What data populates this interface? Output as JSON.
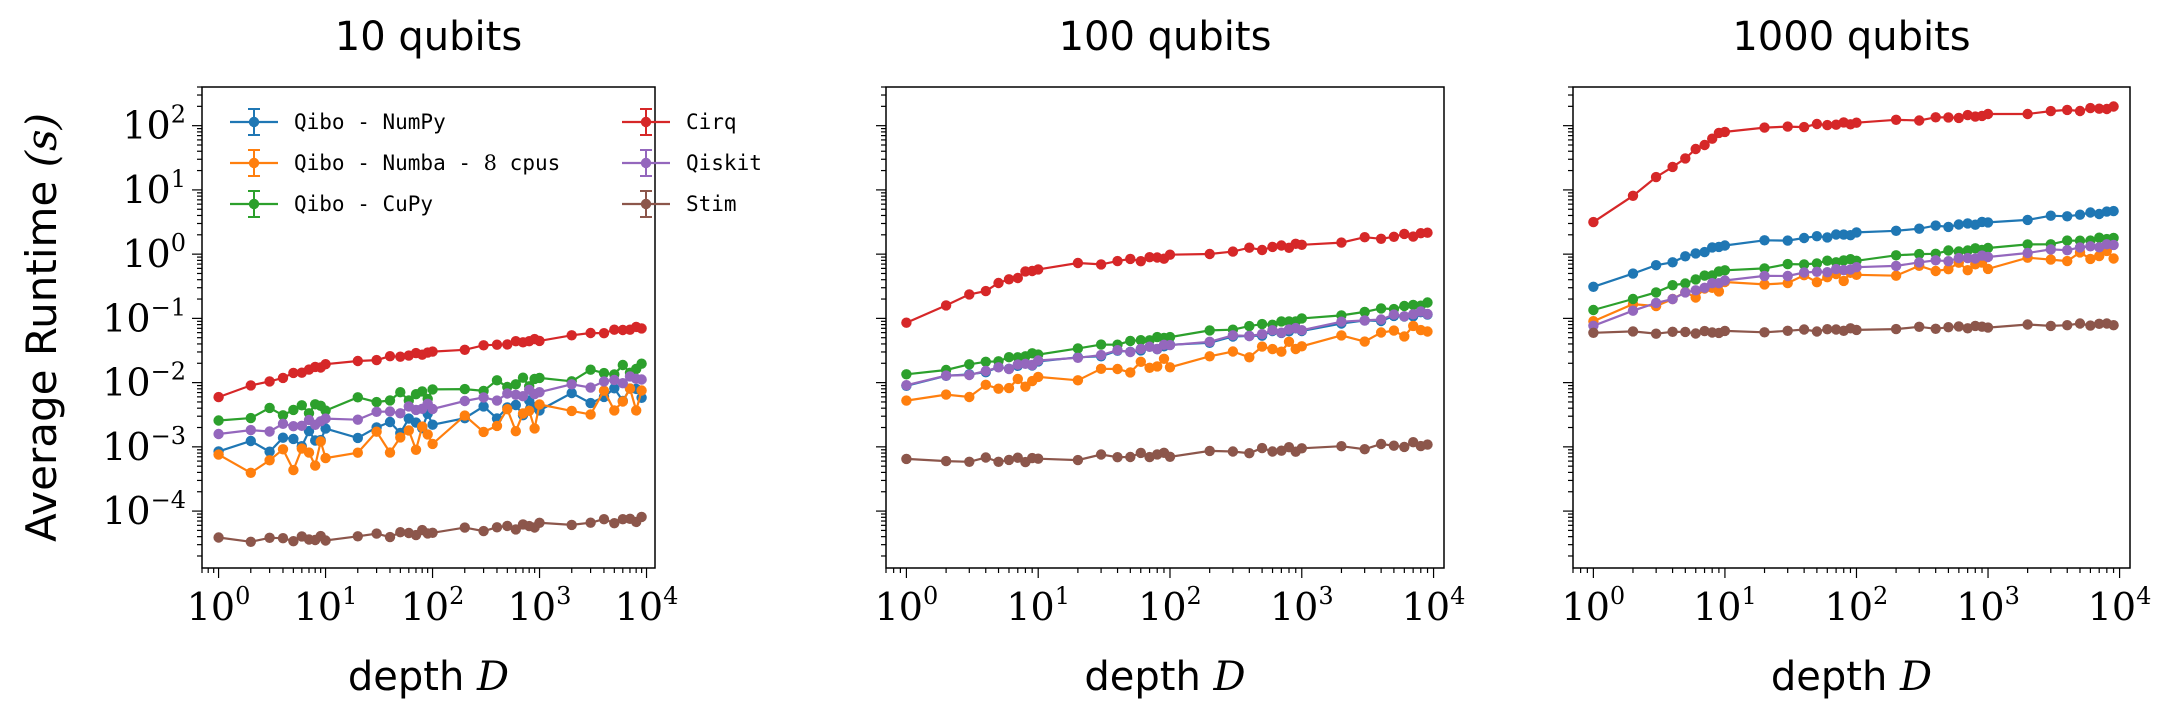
{
  "chart_data": [
    {
      "type": "line",
      "title": "10 qubits",
      "xlabel": "depth",
      "xlabel_math": "D",
      "ylabel": "Average Runtime",
      "ylabel_math": "(s)",
      "xscale": "log",
      "yscale": "log",
      "xlim": [
        0.7,
        12000
      ],
      "ylim": [
        1.3e-05,
        400
      ],
      "xticks": [
        {
          "base": "10",
          "exp": "0",
          "value": 1
        },
        {
          "base": "10",
          "exp": "1",
          "value": 10
        },
        {
          "base": "10",
          "exp": "2",
          "value": 100
        },
        {
          "base": "10",
          "exp": "3",
          "value": 1000
        },
        {
          "base": "10",
          "exp": "4",
          "value": 10000
        }
      ],
      "yticks": [
        {
          "base": "10",
          "exp": "−4",
          "value": 0.0001
        },
        {
          "base": "10",
          "exp": "−3",
          "value": 0.001
        },
        {
          "base": "10",
          "exp": "−2",
          "value": 0.01
        },
        {
          "base": "10",
          "exp": "−1",
          "value": 0.1
        },
        {
          "base": "10",
          "exp": "0",
          "value": 1
        },
        {
          "base": "10",
          "exp": "1",
          "value": 10
        },
        {
          "base": "10",
          "exp": "2",
          "value": 100
        }
      ],
      "show_yticklabels": true,
      "legend": {
        "placement": "top-left",
        "entries": [
          {
            "prefix": "Qibo - NumPy",
            "math": "",
            "suffix": "",
            "color": "#1f77b4"
          },
          {
            "prefix": "Qibo - Numba - ",
            "math": "8",
            "suffix": " cpus",
            "color": "#ff7f0e"
          },
          {
            "prefix": "Qibo - CuPy",
            "math": "",
            "suffix": "",
            "color": "#2ca02c"
          },
          {
            "prefix": "Cirq",
            "math": "",
            "suffix": "",
            "color": "#d62728"
          },
          {
            "prefix": "Qiskit",
            "math": "",
            "suffix": "",
            "color": "#9467bd"
          },
          {
            "prefix": "Stim",
            "math": "",
            "suffix": "",
            "color": "#8c564b"
          }
        ]
      },
      "series": [
        {
          "name": "Qibo - NumPy",
          "color": "#1f77b4",
          "start": 0.00085,
          "end": 0.0075,
          "bump": 0.25,
          "noise": 0.12
        },
        {
          "name": "Qibo - Numba - 8 cpus",
          "color": "#ff7f0e",
          "start": 0.00048,
          "end": 0.006,
          "bump": 0.2,
          "noise": 0.2
        },
        {
          "name": "Qibo - CuPy",
          "color": "#2ca02c",
          "start": 0.0027,
          "end": 0.017,
          "bump": 0.25,
          "noise": 0.08
        },
        {
          "name": "Cirq",
          "color": "#d62728",
          "start": 0.0062,
          "end": 0.072,
          "bump": 0.45,
          "noise": 0.02
        },
        {
          "name": "Qiskit",
          "color": "#9467bd",
          "start": 0.0015,
          "end": 0.012,
          "bump": 0.25,
          "noise": 0.05
        },
        {
          "name": "Stim",
          "color": "#8c564b",
          "start": 3.6e-05,
          "end": 7.5e-05,
          "bump": 0.05,
          "noise": 0.04
        }
      ]
    },
    {
      "type": "line",
      "title": "100 qubits",
      "xlabel": "depth",
      "xlabel_math": "D",
      "xscale": "log",
      "yscale": "log",
      "xlim": [
        0.7,
        12000
      ],
      "ylim": [
        1.3e-05,
        400
      ],
      "xticks": [
        {
          "base": "10",
          "exp": "0",
          "value": 1
        },
        {
          "base": "10",
          "exp": "1",
          "value": 10
        },
        {
          "base": "10",
          "exp": "2",
          "value": 100
        },
        {
          "base": "10",
          "exp": "3",
          "value": 1000
        },
        {
          "base": "10",
          "exp": "4",
          "value": 10000
        }
      ],
      "yticks": [
        {
          "base": "",
          "exp": "",
          "value": 0.0001
        },
        {
          "base": "",
          "exp": "",
          "value": 0.001
        },
        {
          "base": "",
          "exp": "",
          "value": 0.01
        },
        {
          "base": "",
          "exp": "",
          "value": 0.1
        },
        {
          "base": "",
          "exp": "",
          "value": 1
        },
        {
          "base": "",
          "exp": "",
          "value": 10
        },
        {
          "base": "",
          "exp": "",
          "value": 100
        }
      ],
      "show_yticklabels": false,
      "series": [
        {
          "name": "Qibo - NumPy",
          "color": "#1f77b4",
          "start": 0.0095,
          "end": 0.12,
          "bump": 0.3,
          "noise": 0.03
        },
        {
          "name": "Qibo - Numba - 8 cpus",
          "color": "#ff7f0e",
          "start": 0.0048,
          "end": 0.07,
          "bump": 0.3,
          "noise": 0.08
        },
        {
          "name": "Qibo - CuPy",
          "color": "#2ca02c",
          "start": 0.013,
          "end": 0.17,
          "bump": 0.3,
          "noise": 0.02
        },
        {
          "name": "Cirq",
          "color": "#d62728",
          "start": 0.09,
          "end": 2.1,
          "bump": 0.6,
          "noise": 0.03
        },
        {
          "name": "Qiskit",
          "color": "#9467bd",
          "start": 0.0095,
          "end": 0.125,
          "bump": 0.3,
          "noise": 0.03
        },
        {
          "name": "Stim",
          "color": "#8c564b",
          "start": 0.0006,
          "end": 0.0011,
          "bump": 0.1,
          "noise": 0.04
        }
      ]
    },
    {
      "type": "line",
      "title": "1000 qubits",
      "xlabel": "depth",
      "xlabel_math": "D",
      "xscale": "log",
      "yscale": "log",
      "xlim": [
        0.7,
        12000
      ],
      "ylim": [
        1.3e-05,
        400
      ],
      "xticks": [
        {
          "base": "10",
          "exp": "0",
          "value": 1
        },
        {
          "base": "10",
          "exp": "1",
          "value": 10
        },
        {
          "base": "10",
          "exp": "2",
          "value": 100
        },
        {
          "base": "10",
          "exp": "3",
          "value": 1000
        },
        {
          "base": "10",
          "exp": "4",
          "value": 10000
        }
      ],
      "yticks": [
        {
          "base": "",
          "exp": "",
          "value": 0.0001
        },
        {
          "base": "",
          "exp": "",
          "value": 0.001
        },
        {
          "base": "",
          "exp": "",
          "value": 0.01
        },
        {
          "base": "",
          "exp": "",
          "value": 0.1
        },
        {
          "base": "",
          "exp": "",
          "value": 1
        },
        {
          "base": "",
          "exp": "",
          "value": 10
        },
        {
          "base": "",
          "exp": "",
          "value": 100
        }
      ],
      "show_yticklabels": false,
      "series": [
        {
          "name": "Qibo - NumPy",
          "color": "#1f77b4",
          "start": 0.32,
          "end": 4.6,
          "bump": 0.55,
          "noise": 0.02
        },
        {
          "name": "Qibo - Numba - 8 cpus",
          "color": "#ff7f0e",
          "start": 0.1,
          "end": 1.0,
          "bump": 0.5,
          "noise": 0.07
        },
        {
          "name": "Qibo - CuPy",
          "color": "#2ca02c",
          "start": 0.13,
          "end": 1.8,
          "bump": 0.55,
          "noise": 0.02
        },
        {
          "name": "Cirq",
          "color": "#d62728",
          "start": 3.1,
          "end": 190,
          "bump": 0.8,
          "noise": 0.02
        },
        {
          "name": "Qiskit",
          "color": "#9467bd",
          "start": 0.08,
          "end": 1.4,
          "bump": 0.55,
          "noise": 0.02
        },
        {
          "name": "Stim",
          "color": "#8c564b",
          "start": 0.06,
          "end": 0.082,
          "bump": 0.05,
          "noise": 0.02
        }
      ]
    }
  ]
}
